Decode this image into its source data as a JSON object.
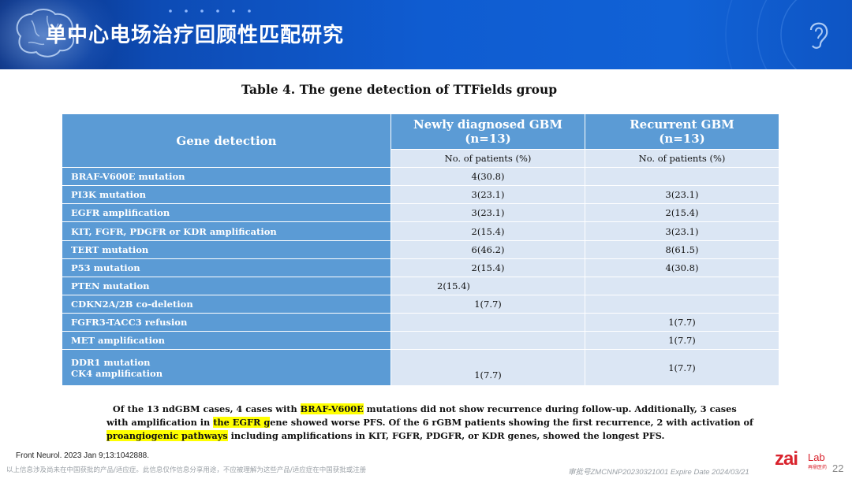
{
  "header": {
    "title": "单中心电场治疗回顾性匹配研究"
  },
  "table": {
    "caption": "Table 4. The gene detection of TTFields group",
    "col_header_gene": "Gene detection",
    "col_header_new_line1": "Newly diagnosed GBM",
    "col_header_new_line2": "(n=13)",
    "col_header_rec_line1": "Recurrent GBM",
    "col_header_rec_line2": "(n=13)",
    "sub_header_new": "No. of patients (%)",
    "sub_header_rec": "No. of patients (%)",
    "rows": [
      {
        "label": "BRAF-V600E mutation",
        "new": "4(30.8)",
        "rec": ""
      },
      {
        "label": "PI3K mutation",
        "new": "3(23.1)",
        "rec": "3(23.1)"
      },
      {
        "label": "EGFR amplification",
        "new": "3(23.1)",
        "rec": "2(15.4)"
      },
      {
        "label": "KIT, FGFR, PDGFR or KDR amplification",
        "new": "2(15.4)",
        "rec": "3(23.1)"
      },
      {
        "label": "TERT mutation",
        "new": "6(46.2)",
        "rec": "8(61.5)"
      },
      {
        "label": "P53 mutation",
        "new": "2(15.4)",
        "rec": "4(30.8)"
      },
      {
        "label": "PTEN mutation",
        "new": "2(15.4)",
        "rec": ""
      },
      {
        "label": "CDKN2A/2B co-deletion",
        "new": "1(7.7)",
        "rec": ""
      },
      {
        "label": "FGFR3-TACC3 refusion",
        "new": "",
        "rec": "1(7.7)"
      },
      {
        "label": "MET amplification",
        "new": "",
        "rec": "1(7.7)"
      }
    ],
    "last_row": {
      "label_line1": "DDR1 mutation",
      "label_line2": "CK4 amplification",
      "new": "1(7.7)",
      "rec": "1(7.7)"
    }
  },
  "paragraph": {
    "p1": "Of the 13 ndGBM cases, 4 cases with ",
    "h1": "BRAF-V600E",
    "p2": " mutations did not show recurrence during follow-up. Additionally, 3 cases with amplification in ",
    "h2": "the EGFR g",
    "p3": "ene showed worse PFS. Of the 6 rGBM patients showing the first recurrence, 2 with activation of ",
    "h3": "proangiogenic pathways",
    "p4": " including amplifications in KIT, FGFR, PDGFR, or KDR genes, showed the longest PFS."
  },
  "footer": {
    "reference": "Front Neurol. 2023 Jan 9;13:1042888.",
    "disclaimer": "以上信息涉及尚未在中国获批的产品/适应症。此信息仅作信息分享用途，不应被理解为这些产品/适应症在中国获批或注册",
    "approval": "审批号ZMCNNP20230321001 Expire Date 2024/03/21",
    "logo_zai": "zai",
    "logo_lab": "Lab",
    "logo_cn": "再鼎医药",
    "page": "22"
  },
  "colors": {
    "banner_blue": "#0f5cd1",
    "table_header": "#5b9bd5",
    "table_cell": "#dbe6f4",
    "highlight": "#ffff00",
    "brand_red": "#d9232d"
  }
}
